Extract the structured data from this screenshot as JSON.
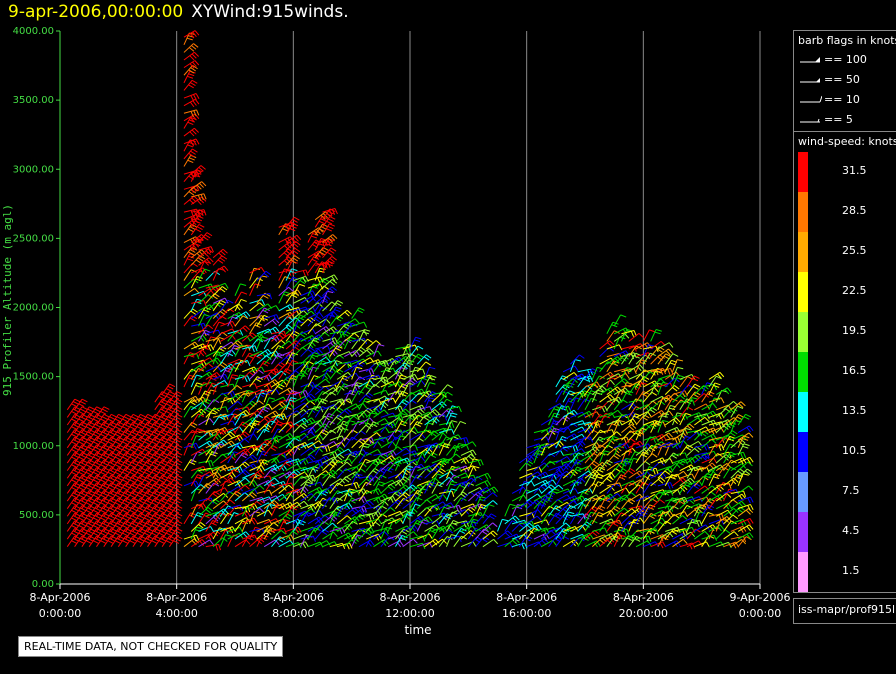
{
  "header": {
    "date": "9-apr-2006,00:00:00",
    "product": "XYWind:915winds."
  },
  "chart_data": {
    "type": "wind-barb time-height",
    "title": "9-apr-2006,00:00:00  XYWind:915winds.",
    "xlabel": "time",
    "ylabel": "915 Profiler Altitude (m agl)",
    "ylim": [
      0,
      4000
    ],
    "y_ticks": [
      "0.00",
      "500.00",
      "1000.00",
      "1500.00",
      "2000.00",
      "2500.00",
      "3000.00",
      "3500.00",
      "4000.00"
    ],
    "x_ticks": [
      {
        "date": "8-Apr-2006",
        "time": "0:00:00"
      },
      {
        "date": "8-Apr-2006",
        "time": "4:00:00"
      },
      {
        "date": "8-Apr-2006",
        "time": "8:00:00"
      },
      {
        "date": "8-Apr-2006",
        "time": "12:00:00"
      },
      {
        "date": "8-Apr-2006",
        "time": "16:00:00"
      },
      {
        "date": "8-Apr-2006",
        "time": "20:00:00"
      },
      {
        "date": "9-Apr-2006",
        "time": "0:00:00"
      }
    ],
    "xlim_hours": [
      0,
      24
    ],
    "grid": "vertical lines at each time tick",
    "profile_times_hours": [
      0.25,
      0.5,
      0.75,
      1,
      1.25,
      1.5,
      1.75,
      2,
      2.25,
      2.5,
      2.75,
      3,
      3.25,
      3.5,
      3.75,
      4.25,
      4.5,
      4.75,
      5,
      5.25,
      5.5,
      5.75,
      6,
      6.25,
      6.5,
      6.75,
      7,
      7.25,
      7.5,
      7.75,
      8,
      8.25,
      8.5,
      8.75,
      9,
      9.25,
      9.5,
      9.75,
      10,
      10.25,
      10.5,
      10.75,
      11,
      11.25,
      11.5,
      11.75,
      12,
      12.25,
      12.5,
      12.75,
      13,
      13.25,
      13.5,
      13.75,
      14,
      14.25,
      14.5,
      15,
      15.25,
      15.5,
      15.75,
      16,
      16.25,
      16.5,
      16.75,
      17,
      17.25,
      17.5,
      17.75,
      18,
      18.25,
      18.5,
      18.75,
      19,
      19.25,
      19.5,
      19.75,
      20,
      20.25,
      20.5,
      20.75,
      21,
      21.25,
      21.5,
      21.75,
      22,
      22.25,
      22.5,
      22.75,
      23,
      23.25
    ],
    "profile_tops_m": [
      1300,
      1300,
      1250,
      1250,
      1250,
      1200,
      1200,
      1200,
      1200,
      1150,
      1150,
      1150,
      1350,
      1400,
      1350,
      4000,
      3000,
      2500,
      2200,
      2400,
      2000,
      2000,
      2100,
      1800,
      2300,
      2200,
      2000,
      1850,
      2600,
      2600,
      2300,
      2100,
      2550,
      2650,
      2700,
      2000,
      1950,
      1900,
      1950,
      1800,
      1700,
      1650,
      1600,
      1600,
      1700,
      1700,
      1750,
      1600,
      1500,
      1400,
      1400,
      1300,
      1100,
      1000,
      900,
      800,
      700,
      400,
      500,
      700,
      900,
      1000,
      1100,
      1200,
      1300,
      1450,
      1550,
      1600,
      1550,
      1500,
      1500,
      1700,
      1850,
      1900,
      1850,
      1800,
      1700,
      1800,
      1800,
      1700,
      1600,
      1550,
      1500,
      1450,
      1400,
      1450,
      1500,
      1400,
      1300,
      1300,
      1150
    ],
    "level_spacing_m": 55,
    "lowest_level_m": 270,
    "speed_color_bins_knots": [
      {
        "label": "31.5",
        "color": "#ff0000"
      },
      {
        "label": "28.5",
        "color": "#ff7700"
      },
      {
        "label": "25.5",
        "color": "#ffaa00"
      },
      {
        "label": "22.5",
        "color": "#ffff00"
      },
      {
        "label": "19.5",
        "color": "#99ff33"
      },
      {
        "label": "16.5",
        "color": "#00dd00"
      },
      {
        "label": "13.5",
        "color": "#00ffff"
      },
      {
        "label": "10.5",
        "color": "#0000ff"
      },
      {
        "label": "7.5",
        "color": "#6699ff"
      },
      {
        "label": "4.5",
        "color": "#9933ff"
      },
      {
        "label": "1.5",
        "color": "#ff99ff"
      }
    ]
  },
  "legend_barbs": {
    "title": "barb flags in knots",
    "items": [
      "== 100",
      "== 50",
      "== 10",
      "== 5"
    ]
  },
  "legend_speed": {
    "title": "wind-speed: knots"
  },
  "source": "iss-mapr/prof915l",
  "notice": "REAL-TIME DATA, NOT CHECKED FOR QUALITY"
}
